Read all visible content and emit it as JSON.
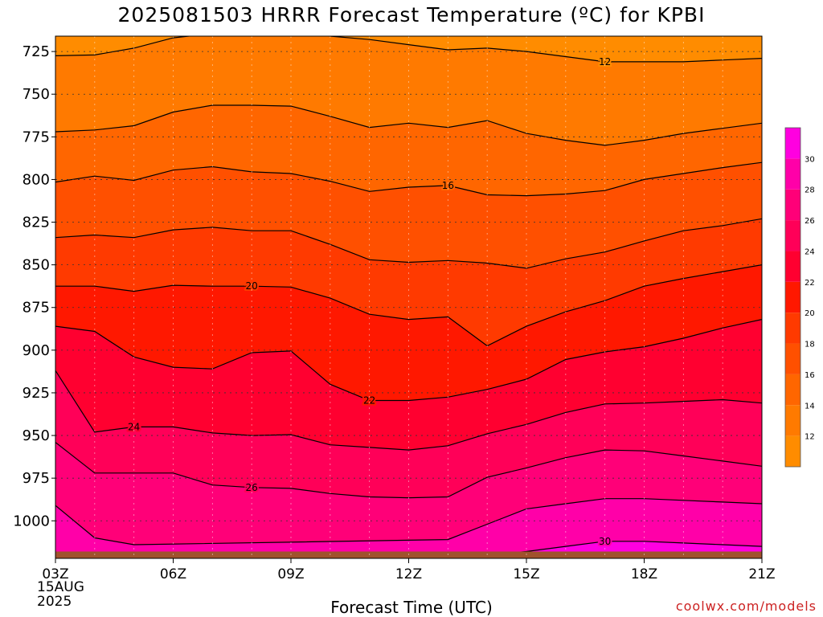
{
  "title": "2025081503 HRRR Forecast Temperature (ºC) for KPBI",
  "xlabel": "Forecast Time (UTC)",
  "credit": "coolwx.com/models",
  "date_label": {
    "day": "15AUG",
    "year": "2025"
  },
  "chart_data": {
    "type": "filled-contour",
    "title": "2025081503 HRRR Forecast Temperature (ºC) for KPBI",
    "xlabel": "Forecast Time (UTC)",
    "ylabel": "",
    "x_ticks": [
      "03Z",
      "06Z",
      "09Z",
      "12Z",
      "15Z",
      "18Z",
      "21Z"
    ],
    "x_hours": [
      3,
      21
    ],
    "y_ticks": [
      725,
      750,
      775,
      800,
      825,
      850,
      875,
      900,
      925,
      950,
      975,
      1000
    ],
    "y_range_hPa": [
      716,
      1022
    ],
    "y_axis": "pressure (hPa), increasing downward",
    "grid": true,
    "ground_level_hPa": 1018,
    "colorbar": {
      "levels": [
        12,
        14,
        16,
        18,
        20,
        22,
        24,
        26,
        28,
        30
      ],
      "colors": [
        "#ff8c00",
        "#ff7a00",
        "#ff6600",
        "#ff5000",
        "#ff3a00",
        "#ff1800",
        "#ff0030",
        "#ff0058",
        "#ff0078",
        "#ff00a8",
        "#ff00e0"
      ]
    },
    "contour_x_hours": [
      3,
      4,
      5,
      6,
      7,
      8,
      9,
      10,
      11,
      12,
      13,
      14,
      15,
      16,
      17,
      18,
      19,
      20,
      21
    ],
    "contours": [
      {
        "value": 12,
        "label": "12",
        "label_hour": 17,
        "p": [
          727.5,
          727,
          723,
          717,
          714.5,
          714.5,
          714.5,
          716,
          718,
          721,
          724,
          723,
          725,
          728,
          731,
          731,
          731,
          730,
          729
        ]
      },
      {
        "value": 14,
        "label": "",
        "label_hour": null,
        "p": [
          772,
          771,
          768.5,
          760.5,
          756.5,
          756.5,
          757,
          763,
          769.5,
          767,
          769.5,
          765.5,
          773,
          777,
          780,
          777,
          773,
          770,
          767
        ]
      },
      {
        "value": 16,
        "label": "16",
        "label_hour": 13,
        "p": [
          801.5,
          798,
          800.5,
          794.5,
          792.5,
          795.5,
          796.5,
          801,
          807,
          804.5,
          803.5,
          809,
          809.5,
          808.5,
          806.5,
          800,
          796.5,
          793,
          790
        ]
      },
      {
        "value": 18,
        "label": "",
        "label_hour": null,
        "p": [
          834,
          832.5,
          834,
          829.5,
          828,
          830,
          830,
          838,
          847,
          848.5,
          847.5,
          849,
          852,
          846.5,
          842.5,
          836,
          830,
          827,
          823
        ]
      },
      {
        "value": 20,
        "label": "20",
        "label_hour": 8,
        "p": [
          862.5,
          862.5,
          865.5,
          862,
          862.5,
          862.5,
          863,
          869.5,
          879,
          882,
          880.5,
          897.5,
          886,
          877.5,
          871,
          862.5,
          858,
          854,
          850
        ]
      },
      {
        "value": 22,
        "label": "22",
        "label_hour": 11,
        "p": [
          886,
          889,
          904,
          910,
          911,
          901.5,
          900.5,
          920,
          929.5,
          929.5,
          927.5,
          923,
          917,
          905.5,
          901,
          898,
          893,
          887,
          882
        ]
      },
      {
        "value": 24,
        "label": "24",
        "label_hour": 5,
        "p": [
          912,
          948,
          945,
          945,
          948.5,
          950,
          949.5,
          955.5,
          957,
          958.5,
          956,
          949,
          943.5,
          936.5,
          931.5,
          931,
          930,
          929,
          931
        ]
      },
      {
        "value": 26,
        "label": "26",
        "label_hour": 8,
        "p": [
          954,
          972,
          972,
          972,
          979,
          980.5,
          981,
          984,
          986,
          986.5,
          986,
          974.5,
          969,
          963,
          958.5,
          959,
          962,
          965,
          968
        ]
      },
      {
        "value": 28,
        "label": "",
        "label_hour": null,
        "p": [
          991,
          1010,
          1014,
          null,
          null,
          null,
          null,
          null,
          null,
          null,
          1011,
          1002,
          993,
          990,
          987,
          987,
          988,
          989,
          990
        ]
      },
      {
        "value": 30,
        "label": "30",
        "label_hour": 17,
        "p": [
          null,
          null,
          null,
          null,
          null,
          null,
          null,
          null,
          null,
          null,
          null,
          1020,
          1018,
          1015,
          1012,
          1012,
          1013,
          1014,
          1015
        ]
      }
    ]
  }
}
